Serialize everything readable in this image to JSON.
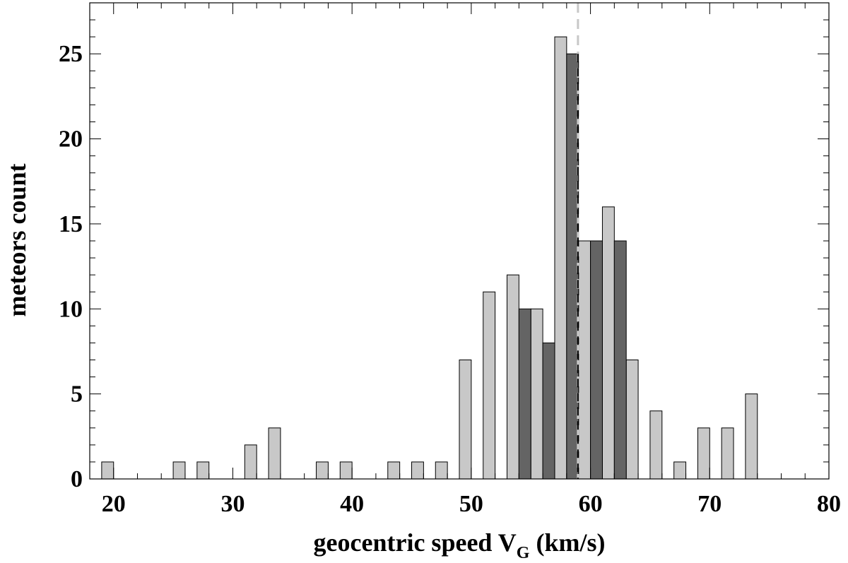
{
  "chart_data": {
    "type": "bar",
    "xlabel": "geocentric speed V",
    "xlabel_subscript": "G",
    "xlabel_unit": " (km/s)",
    "ylabel": "meteors count",
    "xlim": [
      18,
      80
    ],
    "ylim": [
      0,
      28
    ],
    "bin_width": 1,
    "grid": false,
    "x_ticks": [
      20,
      30,
      40,
      50,
      60,
      70,
      80
    ],
    "x_tick_labels": [
      "20",
      "30",
      "40",
      "50",
      "60",
      "70",
      "80"
    ],
    "y_ticks": [
      0,
      5,
      10,
      15,
      20,
      25
    ],
    "y_tick_labels": [
      "0",
      "5",
      "10",
      "15",
      "20",
      "25"
    ],
    "colors": {
      "light": "#c8c8c8",
      "dark": "#646464",
      "edge": "#000000",
      "vline_light": "#c8c8c8",
      "vline_dark": "#000000"
    },
    "series": [
      {
        "style": "light",
        "x": [
          19.5,
          25.5,
          27.5,
          31.5,
          33.5,
          37.5,
          39.5,
          43.5,
          45.5,
          47.5,
          49.5,
          51.5,
          53.5,
          55.5,
          57.5,
          59.5,
          61.5,
          63.5,
          65.5,
          67.5,
          69.5,
          71.5,
          73.5
        ],
        "values": [
          1,
          1,
          1,
          2,
          3,
          1,
          1,
          1,
          1,
          1,
          7,
          11,
          12,
          10,
          26,
          14,
          16,
          7,
          4,
          1,
          3,
          3,
          5
        ]
      },
      {
        "style": "dark",
        "x": [
          54.5,
          56.5,
          58.5,
          60.5,
          62.5
        ],
        "values": [
          10,
          8,
          25,
          14,
          14
        ]
      }
    ],
    "vline": {
      "x": 58.95
    }
  }
}
